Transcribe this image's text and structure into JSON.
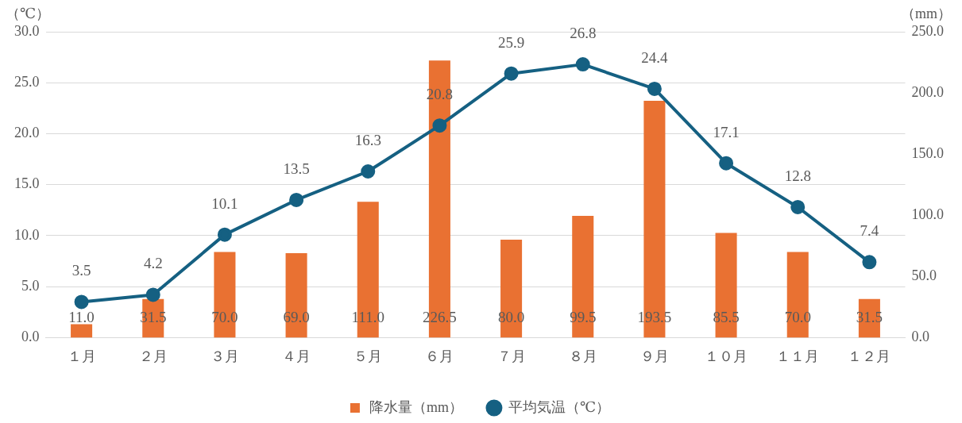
{
  "chart_data": {
    "type": "bar",
    "ylabel": "（℃）",
    "y2label": "（mm）",
    "categories": [
      "１月",
      "２月",
      "３月",
      "４月",
      "５月",
      "６月",
      "７月",
      "８月",
      "９月",
      "１０月",
      "１１月",
      "１２月"
    ],
    "series": [
      {
        "name": "降水量（mm）",
        "axis": "y2",
        "color": "#e97132",
        "values": [
          11.0,
          31.5,
          70.0,
          69.0,
          111.0,
          226.5,
          80.0,
          99.5,
          193.5,
          85.5,
          70.0,
          31.5
        ],
        "value_labels": [
          "11.0",
          "31.5",
          "70.0",
          "69.0",
          "111.0",
          "226.5",
          "80.0",
          "99.5",
          "193.5",
          "85.5",
          "70.0",
          "31.5"
        ]
      },
      {
        "name": "平均気温（℃）",
        "type": "line",
        "color": "#156082",
        "values": [
          3.5,
          4.2,
          10.1,
          13.5,
          16.3,
          20.8,
          25.9,
          26.8,
          24.4,
          17.1,
          12.8,
          7.4
        ]
      }
    ],
    "ylim": [
      0,
      30
    ],
    "yticks": [
      {
        "value": 0,
        "label": "0.0"
      },
      {
        "value": 5,
        "label": "5.0"
      },
      {
        "value": 10,
        "label": "10.0"
      },
      {
        "value": 15,
        "label": "15.0"
      },
      {
        "value": 20,
        "label": "20.0"
      },
      {
        "value": 25,
        "label": "25.0"
      },
      {
        "value": 30,
        "label": "30.0"
      }
    ],
    "y2lim": [
      0,
      250
    ],
    "y2ticks": [
      {
        "value": 0,
        "label": "0.0"
      },
      {
        "value": 50,
        "label": "50.0"
      },
      {
        "value": 100,
        "label": "100.0"
      },
      {
        "value": 150,
        "label": "150.0"
      },
      {
        "value": 200,
        "label": "200.0"
      },
      {
        "value": 250,
        "label": "250.0"
      }
    ],
    "grid": "y",
    "legend": "bottom",
    "marker": "circle",
    "line_style": "solid",
    "data_labels": true
  }
}
